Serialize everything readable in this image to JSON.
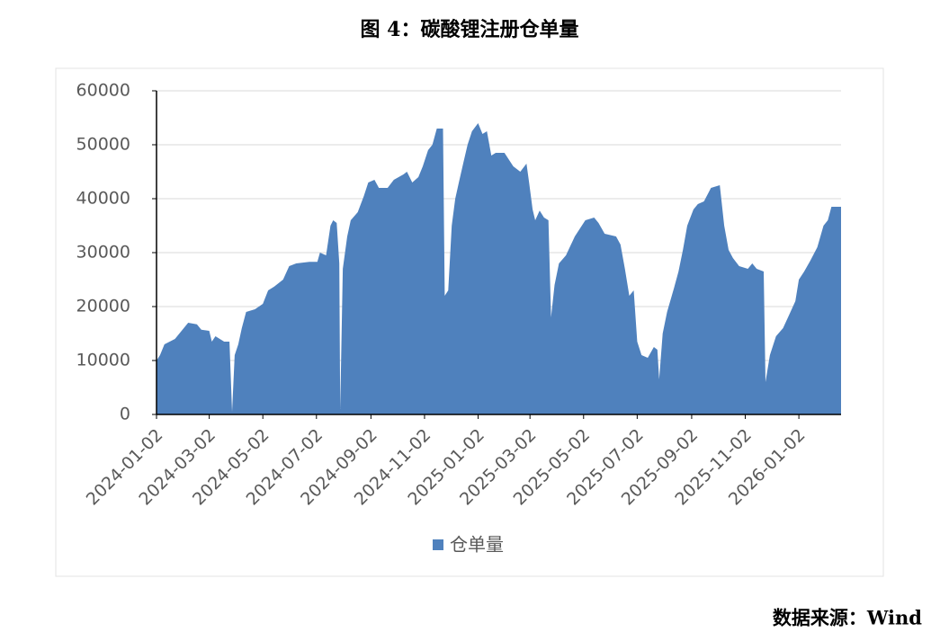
{
  "chart_data": {
    "type": "area",
    "title": "图 4：碳酸锂注册仓单量",
    "source": "数据来源：Wind",
    "x": [
      "2024-01-02",
      "2024-01-06",
      "2024-01-11",
      "2024-01-23",
      "2024-02-02",
      "2024-02-07",
      "2024-02-17",
      "2024-02-22",
      "2024-03-02",
      "2024-03-05",
      "2024-03-09",
      "2024-03-19",
      "2024-03-25",
      "2024-03-28",
      "2024-03-31",
      "2024-04-04",
      "2024-04-08",
      "2024-04-13",
      "2024-04-23",
      "2024-05-02",
      "2024-05-08",
      "2024-05-15",
      "2024-05-25",
      "2024-06-01",
      "2024-06-09",
      "2024-06-24",
      "2024-07-03",
      "2024-07-06",
      "2024-07-13",
      "2024-07-18",
      "2024-07-21",
      "2024-07-25",
      "2024-07-28",
      "2024-07-29",
      "2024-08-01",
      "2024-08-06",
      "2024-08-10",
      "2024-08-18",
      "2024-08-25",
      "2024-08-30",
      "2024-09-06",
      "2024-09-11",
      "2024-09-21",
      "2024-09-28",
      "2024-10-09",
      "2024-10-13",
      "2024-10-19",
      "2024-10-26",
      "2024-10-31",
      "2024-11-06",
      "2024-11-11",
      "2024-11-16",
      "2024-11-23",
      "2024-11-25",
      "2024-11-29",
      "2024-12-03",
      "2024-12-07",
      "2024-12-11",
      "2024-12-16",
      "2024-12-21",
      "2024-12-26",
      "2025-01-02",
      "2025-01-07",
      "2025-01-12",
      "2025-01-17",
      "2025-01-22",
      "2025-02-01",
      "2025-02-11",
      "2025-02-19",
      "2025-02-26",
      "2025-03-01",
      "2025-03-05",
      "2025-03-08",
      "2025-03-13",
      "2025-03-18",
      "2025-03-23",
      "2025-03-26",
      "2025-03-30",
      "2025-04-04",
      "2025-04-12",
      "2025-04-22",
      "2025-05-04",
      "2025-05-14",
      "2025-05-19",
      "2025-05-26",
      "2025-06-08",
      "2025-06-13",
      "2025-06-18",
      "2025-06-23",
      "2025-06-28",
      "2025-07-02",
      "2025-07-07",
      "2025-07-14",
      "2025-07-21",
      "2025-07-25",
      "2025-07-27",
      "2025-07-31",
      "2025-08-05",
      "2025-08-13",
      "2025-08-18",
      "2025-08-23",
      "2025-08-28",
      "2025-09-04",
      "2025-09-09",
      "2025-09-16",
      "2025-09-24",
      "2025-10-04",
      "2025-10-09",
      "2025-10-14",
      "2025-10-19",
      "2025-10-26",
      "2025-11-05",
      "2025-11-10",
      "2025-11-15",
      "2025-11-23",
      "2025-11-25",
      "2025-11-30",
      "2025-12-07",
      "2025-12-15",
      "2025-12-22",
      "2025-12-29",
      "2026-01-02",
      "2026-01-08",
      "2026-01-15",
      "2026-01-23",
      "2026-01-30",
      "2026-02-04",
      "2026-02-08",
      "2026-02-19"
    ],
    "series": [
      {
        "name": "仓单量",
        "color": "#4f81bd",
        "values": [
          10000,
          11000,
          13000,
          14000,
          16000,
          17000,
          16700,
          15700,
          15500,
          13500,
          14500,
          13500,
          13500,
          500,
          11000,
          13000,
          16000,
          19000,
          19500,
          20500,
          23000,
          23700,
          25000,
          27500,
          28000,
          28300,
          28300,
          30000,
          29500,
          35000,
          36000,
          35500,
          28000,
          1000,
          27000,
          33000,
          36000,
          37500,
          40500,
          43000,
          43500,
          42000,
          42000,
          43500,
          44500,
          45000,
          43000,
          44000,
          46000,
          49000,
          50000,
          53000,
          53000,
          22000,
          23000,
          35000,
          40000,
          43000,
          46500,
          50000,
          52500,
          54000,
          52000,
          52500,
          48000,
          48500,
          48500,
          46000,
          45000,
          46500,
          43000,
          38000,
          36000,
          37800,
          36500,
          36000,
          18000,
          24000,
          28000,
          29500,
          33000,
          36000,
          36500,
          35500,
          33500,
          33000,
          31500,
          27000,
          22000,
          23000,
          13500,
          11000,
          10500,
          12500,
          12000,
          6500,
          15000,
          19000,
          23500,
          26500,
          30500,
          35000,
          38000,
          39000,
          39500,
          42000,
          42500,
          35000,
          30500,
          29000,
          27500,
          27000,
          28000,
          27000,
          26500,
          6000,
          11000,
          14500,
          16000,
          18500,
          21000,
          25000,
          26500,
          28500,
          31000,
          35000,
          36000,
          38500,
          38500
        ]
      }
    ],
    "xlim": [
      "2024-01-02",
      "2026-02-19"
    ],
    "xticks": [
      "2024-01-02",
      "2024-03-02",
      "2024-05-02",
      "2024-07-02",
      "2024-09-02",
      "2024-11-02",
      "2025-01-02",
      "2025-03-02",
      "2025-05-02",
      "2025-07-02",
      "2025-09-02",
      "2025-11-02",
      "2026-01-02"
    ],
    "ylim": [
      0,
      60000
    ],
    "yticks": [
      0,
      10000,
      20000,
      30000,
      40000,
      50000,
      60000
    ],
    "grid": true,
    "legend": "bottom"
  }
}
